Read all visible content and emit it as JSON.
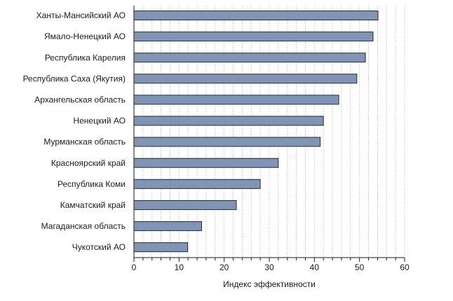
{
  "chart_data": {
    "type": "bar",
    "orientation": "horizontal",
    "categories": [
      "Ханты-Мансийский АО",
      "Ямало-Ненецкий АО",
      "Республика Карелия",
      "Республика Саха (Якутия)",
      "Архангельская область",
      "Ненецкий АО",
      "Мурманская область",
      "Красноярский край",
      "Республика Коми",
      "Камчатский край",
      "Магаданская область",
      "Чукотский АО"
    ],
    "values": [
      54.1,
      53.0,
      51.3,
      49.4,
      45.4,
      42.0,
      41.3,
      32.0,
      28.0,
      22.7,
      15.0,
      11.9
    ],
    "xlabel": "Индекс эффективности",
    "ylabel": "",
    "xlim": [
      0,
      60
    ],
    "xticks": [
      0,
      10,
      20,
      30,
      40,
      50,
      60
    ],
    "grid": "vertical dotted",
    "bar_color": "#8294b4",
    "bar_edge_color": "#1f2a44"
  }
}
